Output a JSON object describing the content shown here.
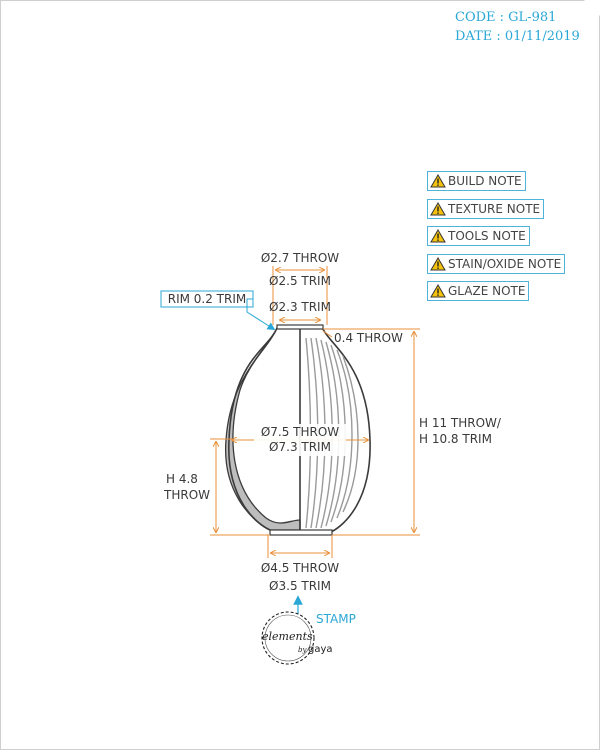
{
  "header": {
    "code": "CODE : GL-981",
    "date": "DATE : 01/11/2019"
  },
  "notes": [
    {
      "label": "BUILD NOTE"
    },
    {
      "label": "TEXTURE NOTE"
    },
    {
      "label": "TOOLS NOTE"
    },
    {
      "label": "STAIN/OXIDE NOTE"
    },
    {
      "label": "GLAZE NOTE"
    }
  ],
  "dimensions": {
    "rim_throw": "Ø2.7 THROW",
    "rim_trim": "Ø2.5 TRIM",
    "neck_trim": "Ø2.3 TRIM",
    "rim_callout": "RIM 0.2 TRIM",
    "wall_throw": "0.4 THROW",
    "body_throw": "Ø7.5 THROW",
    "body_trim": "Ø7.3 TRIM",
    "height_throw": "H 11 THROW/",
    "height_trim": "H 10.8 TRIM",
    "lower_h_line1": "H 4.8",
    "lower_h_line2": "THROW",
    "base_throw": "Ø4.5 THROW",
    "base_trim": "Ø3.5 TRIM"
  },
  "stamp": {
    "label": "STAMP",
    "logo_main": "elements",
    "logo_by": "by",
    "logo_sub": "gaya"
  },
  "colors": {
    "accent": "#2aa7d6",
    "dimension": "#e8913a",
    "outline": "#3b3b3b"
  }
}
